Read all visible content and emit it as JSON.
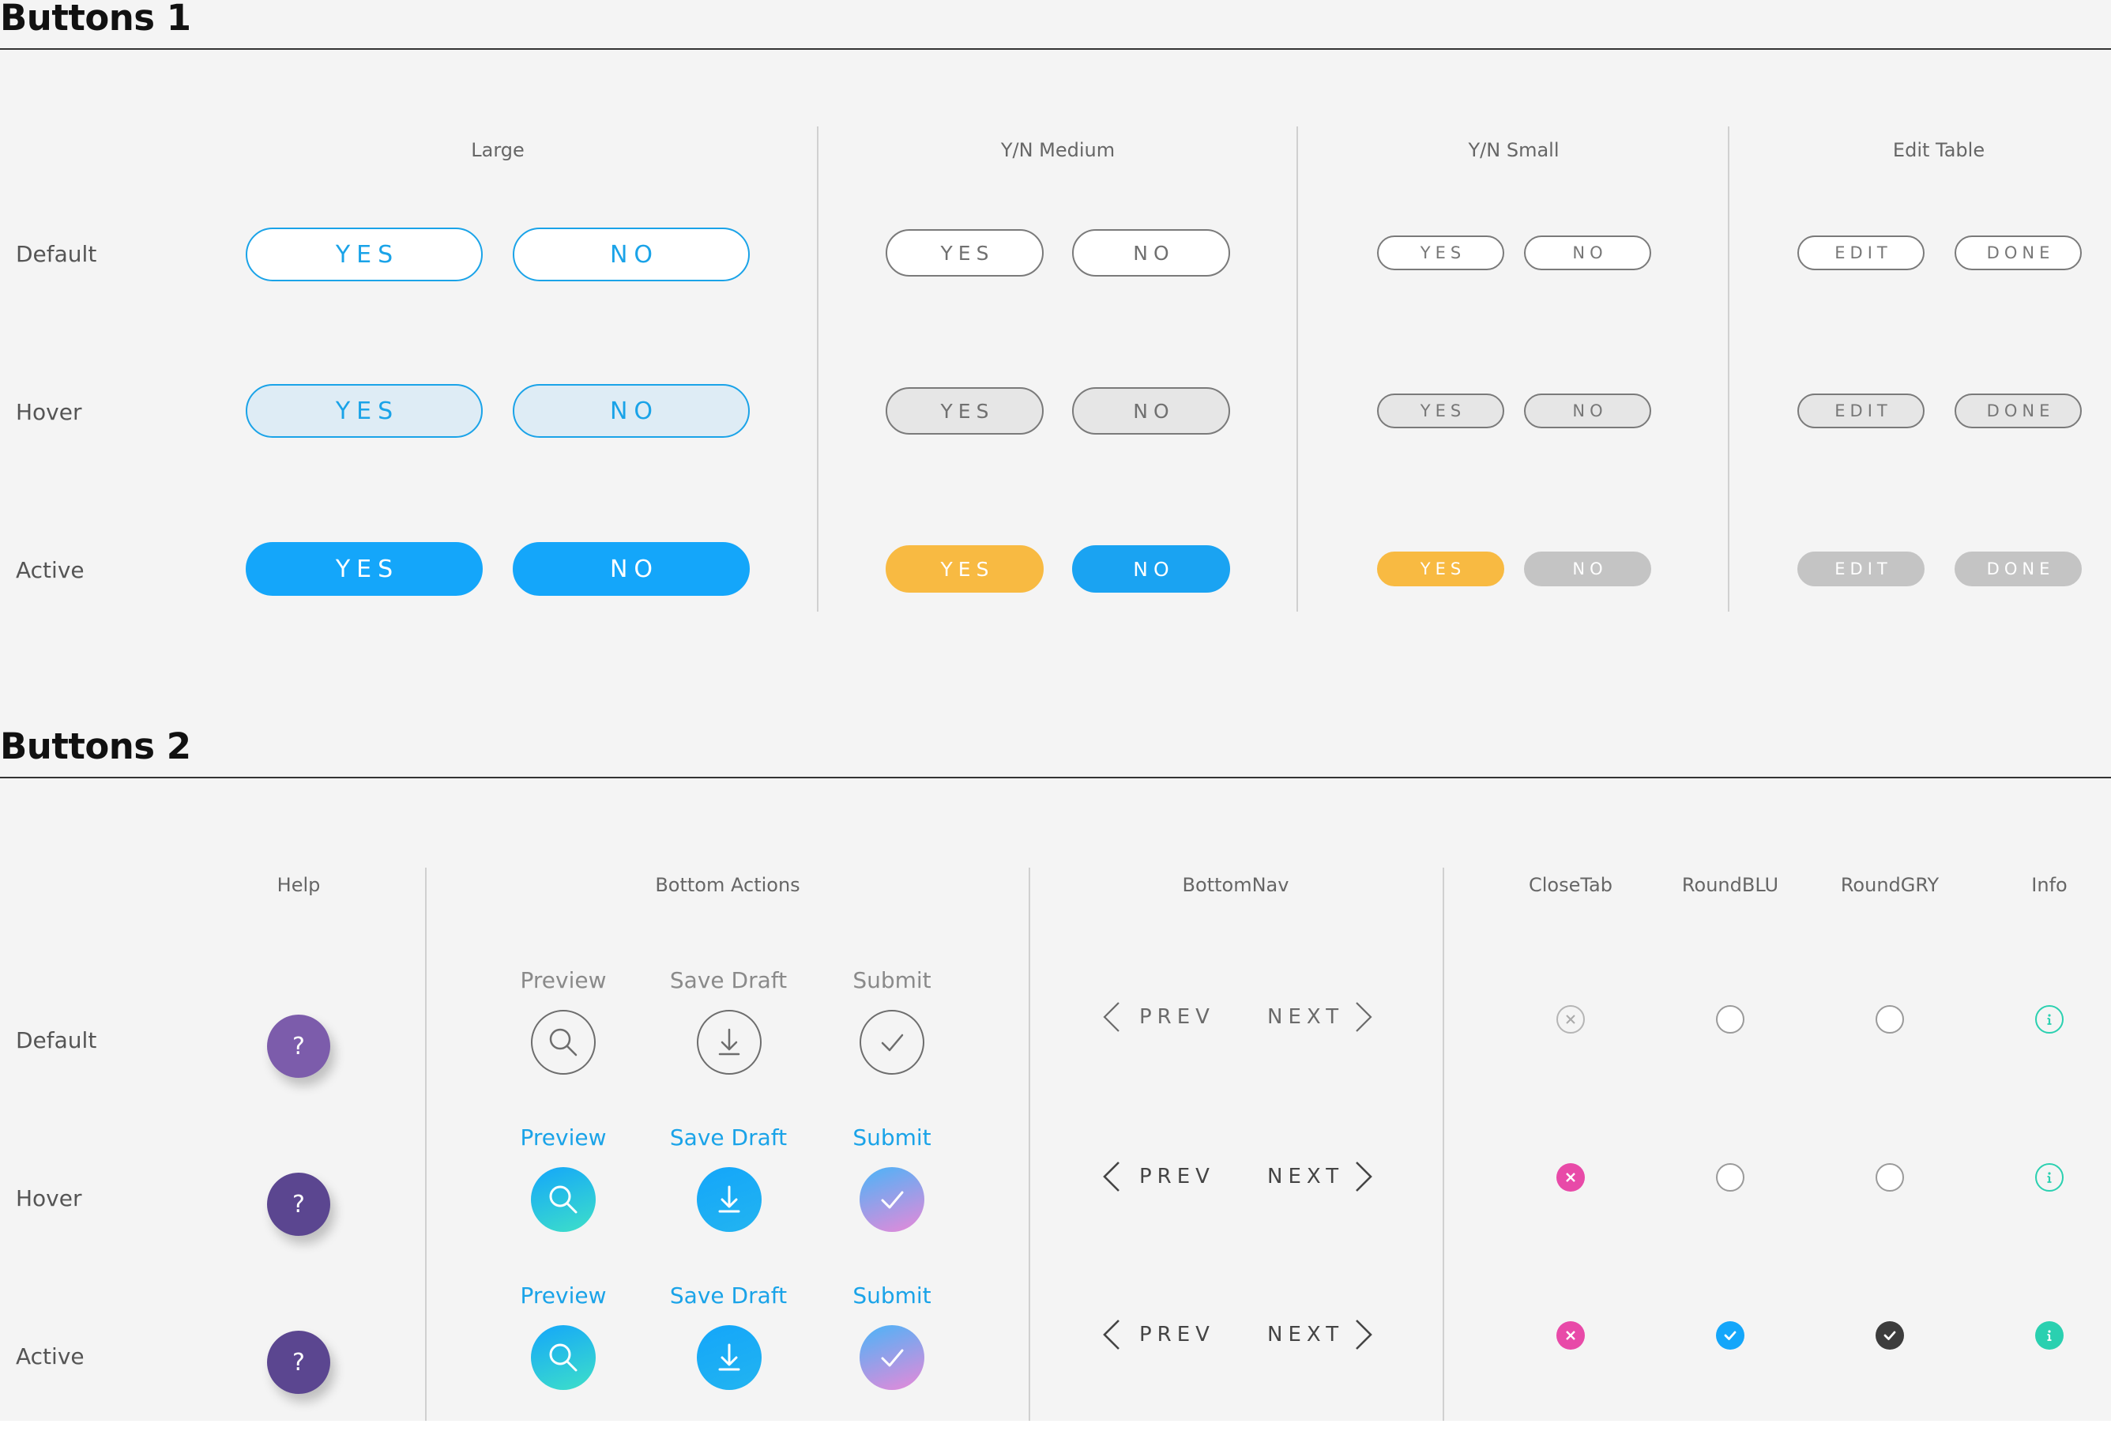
{
  "section1": {
    "title": "Buttons 1",
    "columns": {
      "large": "Large",
      "medium": "Y/N Medium",
      "small": "Y/N Small",
      "edit": "Edit Table"
    },
    "rows": {
      "default": "Default",
      "hover": "Hover",
      "active": "Active"
    },
    "labels": {
      "yes": "YES",
      "no": "NO",
      "edit": "EDIT",
      "done": "DONE"
    }
  },
  "section2": {
    "title": "Buttons 2",
    "columns": {
      "help": "Help",
      "bottom_actions": "Bottom Actions",
      "bottom_nav": "BottomNav",
      "close_tab": "CloseTab",
      "round_blu": "RoundBLU",
      "round_gry": "RoundGRY",
      "info": "Info"
    },
    "rows": {
      "default": "Default",
      "hover": "Hover",
      "active": "Active"
    },
    "help_symbol": "?",
    "actions": {
      "preview": "Preview",
      "save_draft": "Save Draft",
      "submit": "Submit"
    },
    "nav": {
      "prev": "PREV",
      "next": "NEXT"
    }
  },
  "colors": {
    "primary_blue": "#14a6fa",
    "hover_blue_bg": "#deecf5",
    "yellow": "#f8ba42",
    "purple_default": "#7c5cab",
    "purple_dark": "#5b4690",
    "pink": "#e84aa8",
    "teal": "#2ad0b0",
    "dark_check": "#3c3c3c"
  },
  "icons": [
    "search-icon",
    "download-icon",
    "check-icon",
    "chevron-left-icon",
    "chevron-right-icon",
    "close-icon",
    "info-icon"
  ]
}
